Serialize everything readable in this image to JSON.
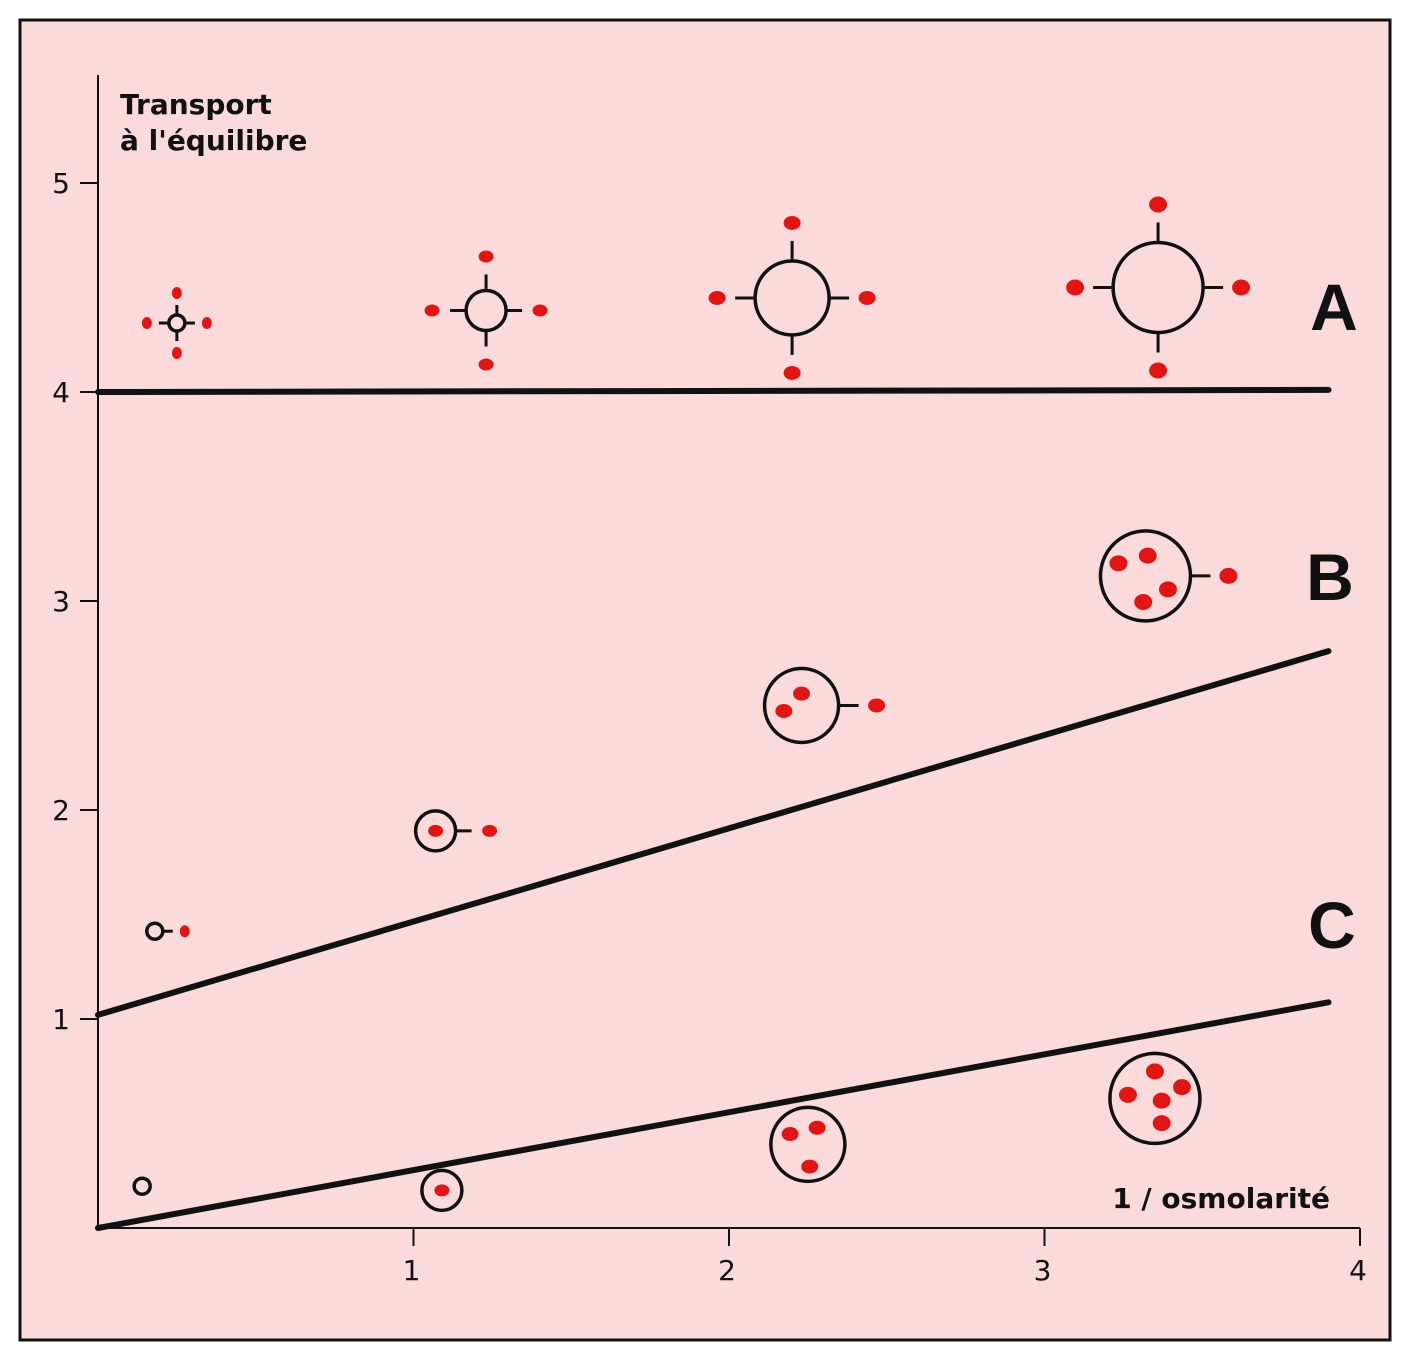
{
  "chart_data": {
    "type": "line",
    "ylabel_line1": "Transport",
    "ylabel_line2": "à  l'équilibre",
    "xlabel": "1  /  osmolarité",
    "xlim": [
      0,
      4
    ],
    "ylim": [
      0,
      5.5
    ],
    "x_ticks": [
      "1",
      "2",
      "3",
      "4"
    ],
    "y_ticks": [
      "1",
      "2",
      "3",
      "4",
      "5"
    ],
    "series": [
      {
        "name": "A",
        "x": [
          0,
          3.9
        ],
        "y": [
          4.0,
          4.01
        ]
      },
      {
        "name": "B",
        "x": [
          0,
          3.9
        ],
        "y": [
          1.02,
          2.76
        ]
      },
      {
        "name": "C",
        "x": [
          0,
          3.9
        ],
        "y": [
          0.0,
          1.08
        ]
      }
    ],
    "cell_glyphs": [
      {
        "series": "A",
        "x": 0.25,
        "y": 4.33,
        "size": "xs",
        "internal_dots": 0,
        "external_dots": 4
      },
      {
        "series": "A",
        "x": 1.23,
        "y": 4.39,
        "size": "s",
        "internal_dots": 0,
        "external_dots": 4
      },
      {
        "series": "A",
        "x": 2.2,
        "y": 4.45,
        "size": "m",
        "internal_dots": 0,
        "external_dots": 4
      },
      {
        "series": "A",
        "x": 3.36,
        "y": 4.5,
        "size": "l",
        "internal_dots": 0,
        "external_dots": 4
      },
      {
        "series": "B",
        "x": 0.18,
        "y": 1.42,
        "size": "xs",
        "internal_dots": 0,
        "external_dots": 1
      },
      {
        "series": "B",
        "x": 1.07,
        "y": 1.9,
        "size": "s",
        "internal_dots": 1,
        "external_dots": 1
      },
      {
        "series": "B",
        "x": 2.23,
        "y": 2.5,
        "size": "m",
        "internal_dots": 2,
        "external_dots": 1
      },
      {
        "series": "B",
        "x": 3.32,
        "y": 3.12,
        "size": "l",
        "internal_dots": 4,
        "external_dots": 1
      },
      {
        "series": "C",
        "x": 0.14,
        "y": 0.2,
        "size": "xs",
        "internal_dots": 0,
        "external_dots": 0
      },
      {
        "series": "C",
        "x": 1.09,
        "y": 0.18,
        "size": "s",
        "internal_dots": 1,
        "external_dots": 0
      },
      {
        "series": "C",
        "x": 2.25,
        "y": 0.4,
        "size": "m",
        "internal_dots": 3,
        "external_dots": 0
      },
      {
        "series": "C",
        "x": 3.35,
        "y": 0.62,
        "size": "l",
        "internal_dots": 5,
        "external_dots": 0
      }
    ]
  },
  "colors": {
    "background": "#fadada",
    "ink": "#111111",
    "dot": "#e01515"
  }
}
